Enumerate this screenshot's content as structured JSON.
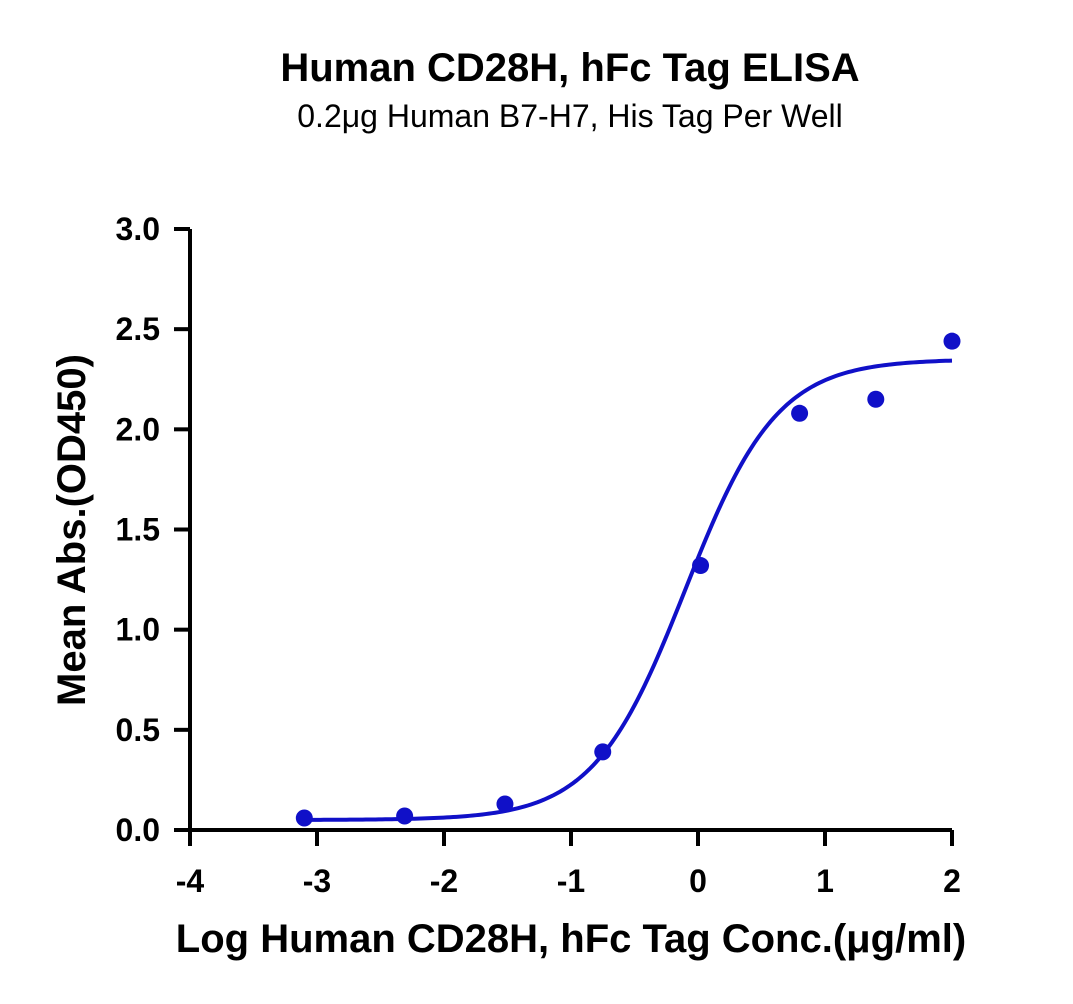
{
  "chart_data": {
    "type": "scatter",
    "title": "Human CD28H, hFc Tag ELISA",
    "subtitle": "0.2μg Human B7-H7, His Tag Per Well",
    "xlabel": "Log Human CD28H, hFc Tag Conc.(μg/ml)",
    "ylabel": "Mean Abs.(OD450)",
    "xlim": [
      -4,
      2
    ],
    "ylim": [
      0,
      3.0
    ],
    "x_ticks": [
      "-4",
      "-3",
      "-2",
      "-1",
      "0",
      "1",
      "2"
    ],
    "y_ticks": [
      "0.0",
      "0.5",
      "1.0",
      "1.5",
      "2.0",
      "2.5",
      "3.0"
    ],
    "grid": false,
    "color": "#1010c8",
    "series": [
      {
        "x": [
          -3.1,
          -2.31,
          -1.52,
          -0.75,
          0.02,
          0.8,
          1.4,
          2.0
        ],
        "y": [
          0.06,
          0.07,
          0.13,
          0.39,
          1.32,
          2.08,
          2.15,
          2.44
        ]
      }
    ],
    "fit": {
      "type": "four-parameter logistic",
      "bottom": 0.05,
      "top": 2.35,
      "log_ec50": -0.1,
      "hill": 1.2,
      "x_range": [
        -3.1,
        2.0
      ]
    }
  }
}
